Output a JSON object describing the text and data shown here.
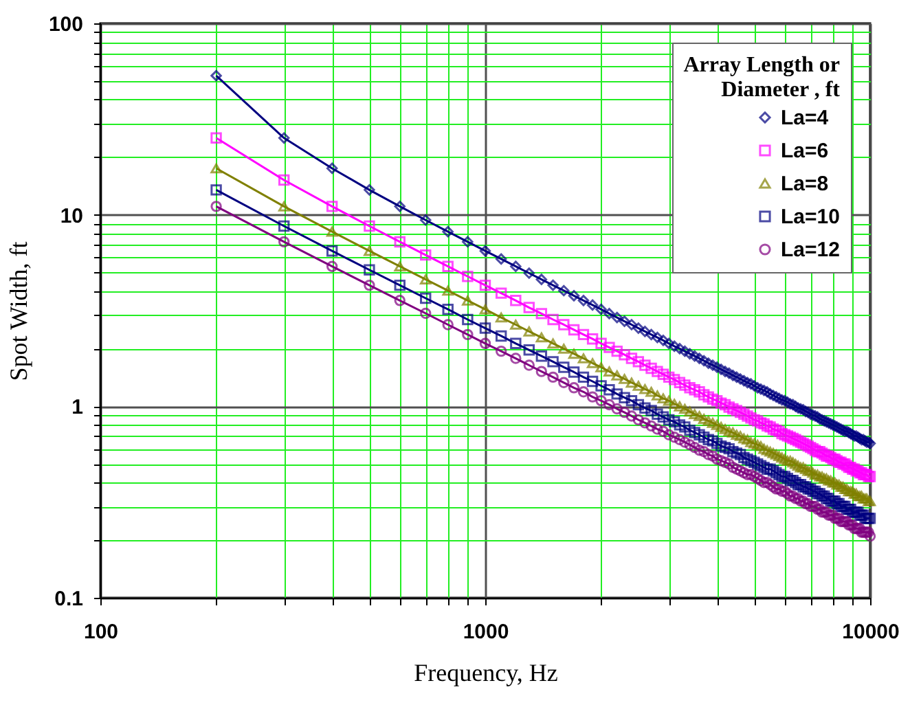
{
  "chart_data": {
    "type": "line",
    "xlabel": "Frequency, Hz",
    "ylabel": "Spot Width, ft",
    "legend_title": "Array Length or Diameter , ft",
    "log": "xy",
    "grid": true,
    "legend": "top right",
    "line_style": "solid",
    "xlim": [
      100,
      10000
    ],
    "ylim": [
      0.1,
      100
    ],
    "xticks": [
      100,
      {
        "value": 200,
        "label": null
      },
      {
        "value": 300,
        "label": null
      },
      {
        "value": 400,
        "label": null
      },
      {
        "value": 500,
        "label": null
      },
      {
        "value": 600,
        "label": null
      },
      {
        "value": 700,
        "label": null
      },
      {
        "value": 800,
        "label": null
      },
      {
        "value": 900,
        "label": null
      },
      1000,
      {
        "value": 2000,
        "label": null
      },
      {
        "value": 3000,
        "label": null
      },
      {
        "value": 4000,
        "label": null
      },
      {
        "value": 5000,
        "label": null
      },
      {
        "value": 6000,
        "label": null
      },
      {
        "value": 7000,
        "label": null
      },
      {
        "value": 8000,
        "label": null
      },
      {
        "value": 9000,
        "label": null
      },
      10000
    ],
    "yticks": [
      0.1,
      {
        "value": 0.2,
        "label": null
      },
      {
        "value": 0.3,
        "label": null
      },
      {
        "value": 0.4,
        "label": null
      },
      {
        "value": 0.5,
        "label": null
      },
      {
        "value": 0.6,
        "label": null
      },
      {
        "value": 0.7,
        "label": null
      },
      {
        "value": 0.8,
        "label": null
      },
      {
        "value": 0.9,
        "label": null
      },
      1,
      {
        "value": 2,
        "label": null
      },
      {
        "value": 3,
        "label": null
      },
      {
        "value": 4,
        "label": null
      },
      {
        "value": 5,
        "label": null
      },
      {
        "value": 6,
        "label": null
      },
      {
        "value": 7,
        "label": null
      },
      {
        "value": 8,
        "label": null
      },
      {
        "value": 9,
        "label": null
      },
      10,
      {
        "value": 20,
        "label": null
      },
      {
        "value": 30,
        "label": null
      },
      {
        "value": 40,
        "label": null
      },
      {
        "value": 50,
        "label": null
      },
      {
        "value": 60,
        "label": null
      },
      {
        "value": 70,
        "label": null
      },
      {
        "value": 80,
        "label": null
      },
      {
        "value": 90,
        "label": null
      },
      100
    ],
    "x": [
      200,
      300,
      400,
      500,
      600,
      700,
      800,
      900,
      1000,
      1100,
      1200,
      1300,
      1400,
      1500,
      1600,
      1700,
      1800,
      1900,
      2000,
      2100,
      2200,
      2300,
      2400,
      2500,
      2600,
      2700,
      2800,
      2900,
      3000,
      3100,
      3200,
      3300,
      3400,
      3500,
      3600,
      3700,
      3800,
      3900,
      4000,
      4100,
      4200,
      4300,
      4400,
      4500,
      4600,
      4700,
      4800,
      4900,
      5000,
      5100,
      5200,
      5300,
      5400,
      5500,
      5600,
      5700,
      5800,
      5900,
      6000,
      6100,
      6200,
      6300,
      6400,
      6500,
      6600,
      6700,
      6800,
      6900,
      7000,
      7100,
      7200,
      7300,
      7400,
      7500,
      7600,
      7700,
      7800,
      7900,
      8000,
      8100,
      8200,
      8300,
      8400,
      8500,
      8600,
      8700,
      8800,
      8900,
      9000,
      9100,
      9200,
      9300,
      9400,
      9500,
      9600,
      9700,
      9800,
      9900,
      10000
    ],
    "series": [
      {
        "name": "La=4",
        "color": "#000080",
        "marker": "diamond",
        "values": [
          53.3,
          25.2,
          17.5,
          13.5,
          11.07,
          9.39,
          8.17,
          7.23,
          6.48,
          5.88,
          5.38,
          4.96,
          4.6,
          4.29,
          4.02,
          3.78,
          3.57,
          3.38,
          3.21,
          3.05,
          2.91,
          2.78,
          2.67,
          2.56,
          2.46,
          2.37,
          2.29,
          2.21,
          2.13,
          2.06,
          2.0,
          1.94,
          1.88,
          1.83,
          1.78,
          1.73,
          1.68,
          1.64,
          1.6,
          1.56,
          1.52,
          1.49,
          1.45,
          1.42,
          1.39,
          1.36,
          1.33,
          1.31,
          1.28,
          1.25,
          1.23,
          1.21,
          1.19,
          1.16,
          1.14,
          1.12,
          1.1,
          1.08,
          1.07,
          1.05,
          1.03,
          1.02,
          1.0,
          0.98,
          0.97,
          0.96,
          0.94,
          0.93,
          0.91,
          0.9,
          0.89,
          0.88,
          0.86,
          0.85,
          0.84,
          0.83,
          0.82,
          0.81,
          0.8,
          0.79,
          0.78,
          0.77,
          0.76,
          0.75,
          0.74,
          0.74,
          0.73,
          0.72,
          0.71,
          0.7,
          0.7,
          0.69,
          0.68,
          0.67,
          0.67,
          0.66,
          0.65,
          0.65,
          0.64
        ]
      },
      {
        "name": "La=6",
        "color": "#ff00ff",
        "marker": "square",
        "values": [
          25.2,
          15.2,
          11.07,
          8.74,
          7.23,
          6.17,
          5.38,
          4.77,
          4.29,
          3.9,
          3.57,
          3.28,
          3.05,
          2.84,
          2.67,
          2.51,
          2.37,
          2.25,
          2.13,
          2.03,
          1.94,
          1.86,
          1.78,
          1.71,
          1.64,
          1.58,
          1.52,
          1.47,
          1.42,
          1.38,
          1.33,
          1.29,
          1.25,
          1.22,
          1.19,
          1.15,
          1.12,
          1.09,
          1.07,
          1.04,
          1.02,
          0.99,
          0.97,
          0.95,
          0.93,
          0.91,
          0.89,
          0.87,
          0.85,
          0.84,
          0.82,
          0.81,
          0.79,
          0.78,
          0.76,
          0.75,
          0.74,
          0.72,
          0.71,
          0.7,
          0.69,
          0.68,
          0.67,
          0.66,
          0.65,
          0.64,
          0.63,
          0.62,
          0.61,
          0.6,
          0.59,
          0.58,
          0.58,
          0.57,
          0.56,
          0.55,
          0.55,
          0.54,
          0.53,
          0.53,
          0.52,
          0.51,
          0.51,
          0.5,
          0.5,
          0.49,
          0.48,
          0.48,
          0.47,
          0.47,
          0.46,
          0.46,
          0.45,
          0.45,
          0.44,
          0.44,
          0.44,
          0.43,
          0.43
        ]
      },
      {
        "name": "La=8",
        "color": "#808000",
        "marker": "triangle",
        "values": [
          17.5,
          11.07,
          8.17,
          6.48,
          5.38,
          4.6,
          4.02,
          3.57,
          3.21,
          2.91,
          2.67,
          2.46,
          2.29,
          2.13,
          2.0,
          1.88,
          1.78,
          1.68,
          1.6,
          1.52,
          1.45,
          1.39,
          1.33,
          1.28,
          1.23,
          1.19,
          1.14,
          1.1,
          1.07,
          1.03,
          1.0,
          0.97,
          0.94,
          0.91,
          0.89,
          0.86,
          0.84,
          0.82,
          0.8,
          0.78,
          0.76,
          0.74,
          0.73,
          0.71,
          0.7,
          0.68,
          0.67,
          0.65,
          0.64,
          0.63,
          0.62,
          0.6,
          0.59,
          0.58,
          0.57,
          0.56,
          0.55,
          0.54,
          0.53,
          0.52,
          0.52,
          0.51,
          0.5,
          0.49,
          0.48,
          0.48,
          0.47,
          0.46,
          0.46,
          0.45,
          0.44,
          0.44,
          0.43,
          0.43,
          0.42,
          0.42,
          0.41,
          0.41,
          0.4,
          0.4,
          0.39,
          0.39,
          0.38,
          0.38,
          0.37,
          0.37,
          0.36,
          0.36,
          0.36,
          0.35,
          0.35,
          0.34,
          0.34,
          0.34,
          0.33,
          0.33,
          0.33,
          0.32,
          0.32
        ]
      },
      {
        "name": "La=10",
        "color": "#000080",
        "marker": "square",
        "values": [
          13.5,
          8.74,
          6.48,
          5.16,
          4.29,
          3.67,
          3.21,
          2.84,
          2.56,
          2.33,
          2.13,
          1.97,
          1.83,
          1.71,
          1.6,
          1.51,
          1.42,
          1.35,
          1.28,
          1.22,
          1.16,
          1.11,
          1.07,
          1.02,
          0.98,
          0.95,
          0.91,
          0.88,
          0.85,
          0.83,
          0.8,
          0.78,
          0.75,
          0.73,
          0.71,
          0.69,
          0.67,
          0.66,
          0.64,
          0.62,
          0.61,
          0.6,
          0.58,
          0.57,
          0.56,
          0.54,
          0.53,
          0.52,
          0.51,
          0.5,
          0.49,
          0.48,
          0.47,
          0.47,
          0.46,
          0.45,
          0.44,
          0.43,
          0.43,
          0.42,
          0.41,
          0.41,
          0.4,
          0.39,
          0.39,
          0.38,
          0.38,
          0.37,
          0.37,
          0.36,
          0.36,
          0.35,
          0.35,
          0.34,
          0.34,
          0.33,
          0.33,
          0.32,
          0.32,
          0.32,
          0.31,
          0.31,
          0.3,
          0.3,
          0.3,
          0.29,
          0.29,
          0.29,
          0.28,
          0.28,
          0.28,
          0.28,
          0.27,
          0.27,
          0.27,
          0.26,
          0.26,
          0.26,
          0.26
        ]
      },
      {
        "name": "La=12",
        "color": "#800080",
        "marker": "circle",
        "values": [
          11.07,
          7.23,
          5.38,
          4.29,
          3.57,
          3.06,
          2.67,
          2.37,
          2.13,
          1.94,
          1.78,
          1.64,
          1.52,
          1.42,
          1.33,
          1.25,
          1.19,
          1.12,
          1.07,
          1.02,
          0.97,
          0.93,
          0.89,
          0.85,
          0.82,
          0.79,
          0.76,
          0.74,
          0.71,
          0.69,
          0.67,
          0.65,
          0.63,
          0.61,
          0.59,
          0.58,
          0.56,
          0.55,
          0.53,
          0.52,
          0.51,
          0.5,
          0.48,
          0.47,
          0.46,
          0.45,
          0.44,
          0.44,
          0.43,
          0.42,
          0.41,
          0.4,
          0.4,
          0.39,
          0.38,
          0.37,
          0.37,
          0.36,
          0.36,
          0.35,
          0.34,
          0.34,
          0.33,
          0.33,
          0.32,
          0.32,
          0.31,
          0.31,
          0.3,
          0.3,
          0.3,
          0.29,
          0.29,
          0.28,
          0.28,
          0.28,
          0.27,
          0.27,
          0.27,
          0.26,
          0.26,
          0.26,
          0.25,
          0.25,
          0.25,
          0.25,
          0.24,
          0.24,
          0.24,
          0.23,
          0.23,
          0.23,
          0.23,
          0.22,
          0.22,
          0.22,
          0.22,
          0.22,
          0.21
        ]
      }
    ]
  }
}
